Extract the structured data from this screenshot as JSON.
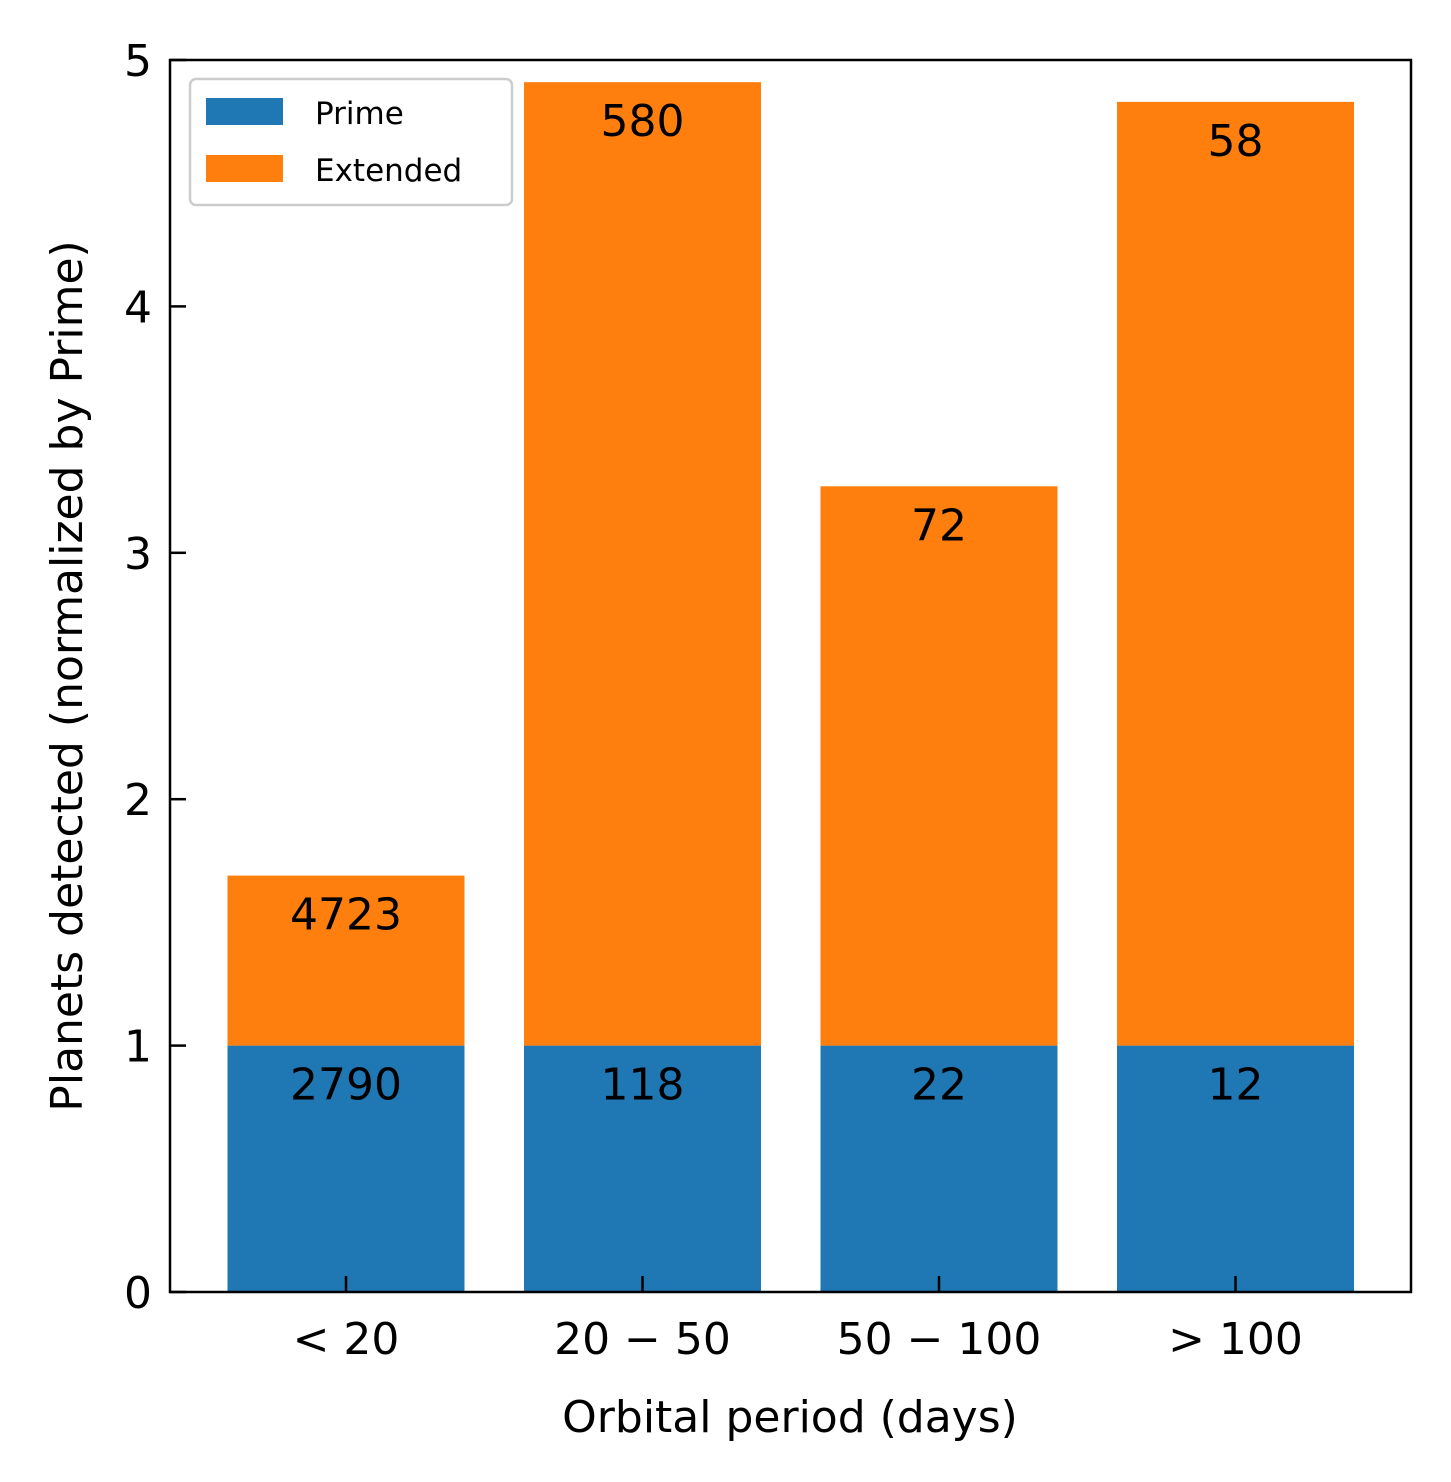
{
  "colors": {
    "prime": "#1f77b4",
    "extended": "#ff7f0e",
    "axis": "#000000",
    "legend_border": "#cccccc"
  },
  "chart_data": {
    "type": "bar",
    "stacked": true,
    "categories": [
      "< 20",
      "20 − 50",
      "50 − 100",
      "> 100"
    ],
    "series": [
      {
        "name": "Prime",
        "values": [
          1,
          1,
          1,
          1
        ],
        "labels": [
          "2790",
          "118",
          "22",
          "12"
        ]
      },
      {
        "name": "Extended",
        "values": [
          0.69,
          3.91,
          2.27,
          3.83
        ],
        "labels": [
          "4723",
          "580",
          "72",
          "58"
        ]
      }
    ],
    "xlabel": "Orbital period (days)",
    "ylabel": "Planets detected (normalized by Prime)",
    "ylim": [
      0,
      5
    ],
    "yticks": [
      "0",
      "1",
      "2",
      "3",
      "4",
      "5"
    ],
    "legend_position": "upper-left",
    "grid": false
  }
}
